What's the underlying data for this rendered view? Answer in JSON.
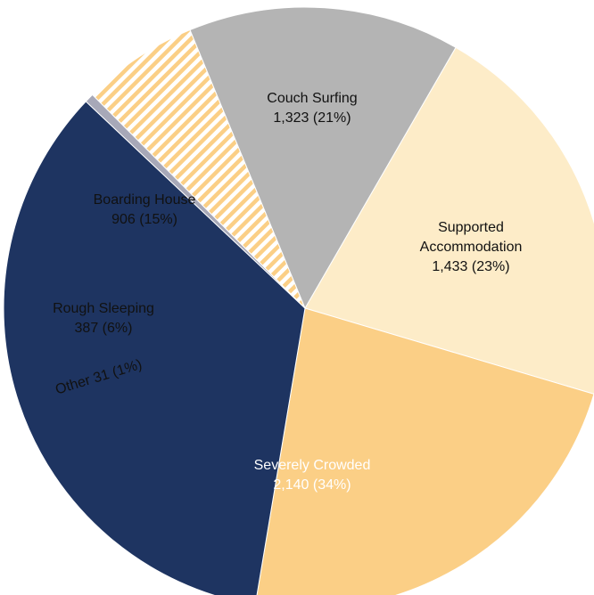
{
  "chart_data": {
    "type": "pie",
    "title": "",
    "slices": [
      {
        "category": "Couch Surfing",
        "value": 1323,
        "display": "1,323 (21%)",
        "color": "#fdecc8",
        "pattern": "none",
        "text_color": "#111111"
      },
      {
        "category": "Supported Accommodation",
        "value": 1433,
        "display": "1,433 (23%)",
        "color": "#fbcf86",
        "pattern": "none",
        "text_color": "#111111"
      },
      {
        "category": "Severely Crowded",
        "value": 2140,
        "display": "2,140 (34%)",
        "color": "#1e3461",
        "pattern": "none",
        "text_color": "#ffffff"
      },
      {
        "category": "Other",
        "value": 31,
        "display": "31 (1%)",
        "color": "#a7a8b8",
        "pattern": "none",
        "text_color": "#111111"
      },
      {
        "category": "Rough Sleeping",
        "value": 387,
        "display": "387 (6%)",
        "color": "#fbcf86",
        "pattern": "stripes",
        "text_color": "#111111"
      },
      {
        "category": "Boarding House",
        "value": 906,
        "display": "906 (15%)",
        "color": "#b4b4b4",
        "pattern": "none",
        "text_color": "#111111"
      }
    ],
    "label_lines": [
      [
        "Couch Surfing",
        "1,323 (21%)"
      ],
      [
        "Supported",
        "Accommodation",
        "1,433 (23%)"
      ],
      [
        "Severely Crowded",
        "2,140 (34%)"
      ],
      [
        "Other 31 (1%)"
      ],
      [
        "Rough Sleeping",
        "387 (6%)"
      ],
      [
        "Boarding House",
        "906 (15%)"
      ]
    ],
    "legend": "none"
  }
}
